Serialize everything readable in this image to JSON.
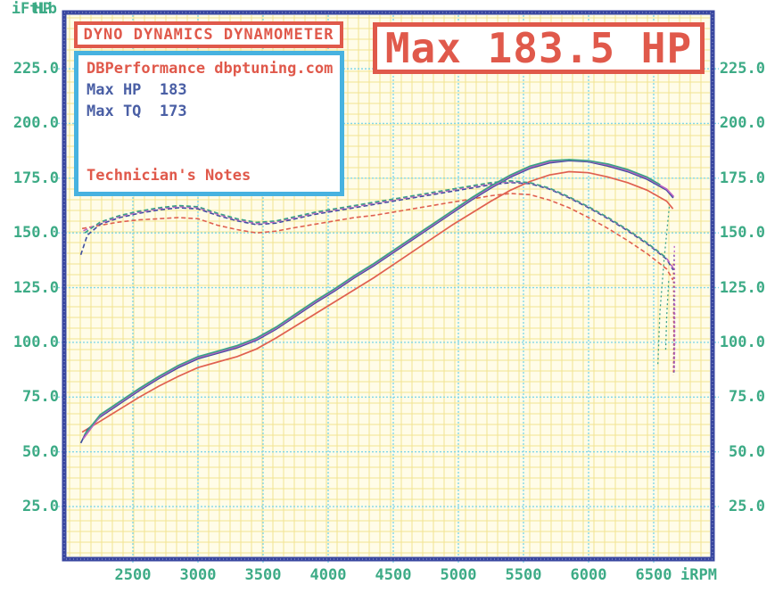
{
  "header": {
    "title": "DYNO DYNAMICS DYNAMOMETER"
  },
  "banner": {
    "text": "Max 183.5 HP"
  },
  "info": {
    "shop": "DBPerformance dbptuning.com",
    "max_hp_line": "Max HP  183",
    "max_tq_line": "Max TQ  173",
    "notes_label": "Technician's Notes"
  },
  "colors": {
    "red_accent": "#e0594b",
    "green_label": "#3dab86",
    "navy_text": "#4a5fa5",
    "cyan_box_border": "#47b2e0",
    "plot_border": "#3947a0",
    "plot_bg": "#fffce8",
    "grid_minor": "#f2e391",
    "grid_major": "#82d7e8"
  },
  "chart_data": {
    "type": "line",
    "title": "Max 183.5 HP",
    "subtitle": "DYNO DYNAMICS DYNAMOMETER",
    "grid": {
      "minor": "on",
      "major": "on"
    },
    "x": {
      "label": "iRPM",
      "min": 1975,
      "max": 6950,
      "ticks": [
        2500,
        3000,
        3500,
        4000,
        4500,
        5000,
        5500,
        6000,
        6500
      ]
    },
    "y_left": {
      "label": "HP",
      "min": 0,
      "max": 250,
      "ticks": [
        225,
        200,
        175,
        150,
        125,
        100,
        75,
        50,
        25
      ]
    },
    "y_right": {
      "label": "iFtLb",
      "min": 0,
      "max": 250,
      "ticks": [
        225,
        200,
        175,
        150,
        125,
        100,
        75,
        50,
        25
      ]
    },
    "stats": {
      "max_hp": 183.5,
      "max_tq": 173
    },
    "runs": [
      {
        "name": "run-red",
        "color": "#e0604f",
        "hp": [
          [
            2110,
            59
          ],
          [
            2250,
            64
          ],
          [
            2400,
            69.5
          ],
          [
            2550,
            75
          ],
          [
            2700,
            80
          ],
          [
            2850,
            84.5
          ],
          [
            3000,
            88.5
          ],
          [
            3150,
            91
          ],
          [
            3300,
            93.5
          ],
          [
            3450,
            97
          ],
          [
            3600,
            102
          ],
          [
            3750,
            107.5
          ],
          [
            3900,
            113
          ],
          [
            4050,
            118.5
          ],
          [
            4200,
            124
          ],
          [
            4350,
            129.5
          ],
          [
            4500,
            135.5
          ],
          [
            4650,
            141.5
          ],
          [
            4800,
            147.5
          ],
          [
            4950,
            153.5
          ],
          [
            5100,
            159
          ],
          [
            5250,
            164.5
          ],
          [
            5400,
            169.5
          ],
          [
            5550,
            173.5
          ],
          [
            5700,
            176.5
          ],
          [
            5850,
            178
          ],
          [
            6000,
            177.5
          ],
          [
            6150,
            175.5
          ],
          [
            6300,
            173
          ],
          [
            6450,
            169.5
          ],
          [
            6600,
            164.5
          ],
          [
            6648,
            161
          ]
        ],
        "hp_tail": [
          [
            6651,
            136
          ],
          [
            6655,
            108
          ],
          [
            6651,
            85
          ]
        ],
        "tq": [
          [
            2110,
            152
          ],
          [
            2250,
            153.5
          ],
          [
            2400,
            155
          ],
          [
            2550,
            156
          ],
          [
            2700,
            156.5
          ],
          [
            2850,
            157
          ],
          [
            3000,
            156.5
          ],
          [
            3150,
            153.5
          ],
          [
            3300,
            151.5
          ],
          [
            3450,
            150
          ],
          [
            3600,
            150.8
          ],
          [
            3750,
            152.5
          ],
          [
            3900,
            154
          ],
          [
            4050,
            155.5
          ],
          [
            4200,
            157
          ],
          [
            4350,
            158
          ],
          [
            4500,
            159.5
          ],
          [
            4650,
            161
          ],
          [
            4800,
            162.5
          ],
          [
            4950,
            164
          ],
          [
            5100,
            165.5
          ],
          [
            5250,
            167
          ],
          [
            5400,
            168
          ],
          [
            5550,
            167.5
          ],
          [
            5700,
            165
          ],
          [
            5850,
            161.5
          ],
          [
            6000,
            157
          ],
          [
            6150,
            152
          ],
          [
            6300,
            146.5
          ],
          [
            6450,
            140.5
          ],
          [
            6600,
            133.5
          ],
          [
            6648,
            128.5
          ]
        ],
        "tq_tail": [
          [
            6652,
            114
          ],
          [
            6656,
            98
          ],
          [
            6652,
            86
          ]
        ]
      },
      {
        "name": "run-blue",
        "color": "#3d4f9e",
        "hp": [
          [
            2100,
            54
          ],
          [
            2150,
            60
          ],
          [
            2250,
            66
          ],
          [
            2400,
            72
          ],
          [
            2550,
            78
          ],
          [
            2700,
            83.5
          ],
          [
            2850,
            88.5
          ],
          [
            3000,
            92.5
          ],
          [
            3150,
            95
          ],
          [
            3300,
            97.5
          ],
          [
            3450,
            101
          ],
          [
            3600,
            106
          ],
          [
            3750,
            112
          ],
          [
            3900,
            118
          ],
          [
            4050,
            123.5
          ],
          [
            4200,
            129.5
          ],
          [
            4350,
            135
          ],
          [
            4500,
            141
          ],
          [
            4650,
            147
          ],
          [
            4800,
            153
          ],
          [
            4950,
            159
          ],
          [
            5100,
            165
          ],
          [
            5250,
            170.5
          ],
          [
            5400,
            175.5
          ],
          [
            5550,
            179.5
          ],
          [
            5700,
            182
          ],
          [
            5850,
            183
          ],
          [
            6000,
            182.5
          ],
          [
            6150,
            180.5
          ],
          [
            6300,
            178
          ],
          [
            6450,
            174.5
          ],
          [
            6600,
            169.5
          ],
          [
            6650,
            166
          ]
        ],
        "hp_tail": [
          [
            6656,
            140
          ],
          [
            6660,
            112
          ],
          [
            6656,
            86
          ]
        ],
        "tq": [
          [
            2100,
            140
          ],
          [
            2150,
            149
          ],
          [
            2250,
            154
          ],
          [
            2400,
            157
          ],
          [
            2550,
            159
          ],
          [
            2700,
            160.5
          ],
          [
            2850,
            161.5
          ],
          [
            3000,
            161
          ],
          [
            3150,
            158
          ],
          [
            3300,
            155.5
          ],
          [
            3450,
            153.8
          ],
          [
            3600,
            154.5
          ],
          [
            3750,
            156.5
          ],
          [
            3900,
            158.5
          ],
          [
            4050,
            160
          ],
          [
            4200,
            161.5
          ],
          [
            4350,
            163
          ],
          [
            4500,
            164.5
          ],
          [
            4650,
            166
          ],
          [
            4800,
            167.5
          ],
          [
            4950,
            169
          ],
          [
            5100,
            170.5
          ],
          [
            5250,
            172
          ],
          [
            5400,
            173
          ],
          [
            5550,
            172.5
          ],
          [
            5700,
            170
          ],
          [
            5850,
            166
          ],
          [
            6000,
            161.5
          ],
          [
            6150,
            156.5
          ],
          [
            6300,
            151
          ],
          [
            6450,
            145
          ],
          [
            6600,
            138
          ],
          [
            6650,
            133
          ]
        ],
        "tq_tail": [
          [
            6655,
            120
          ],
          [
            6660,
            104
          ],
          [
            6656,
            88
          ]
        ]
      },
      {
        "name": "run-magenta",
        "color": "#bb62c4",
        "hp": [
          [
            2120,
            56
          ],
          [
            2250,
            66.5
          ],
          [
            2400,
            72.5
          ],
          [
            2550,
            78.5
          ],
          [
            2700,
            84
          ],
          [
            2850,
            89
          ],
          [
            3000,
            93
          ],
          [
            3150,
            95.5
          ],
          [
            3300,
            98
          ],
          [
            3450,
            101.5
          ],
          [
            3600,
            106.5
          ],
          [
            3750,
            112.5
          ],
          [
            3900,
            118.5
          ],
          [
            4050,
            124
          ],
          [
            4200,
            130
          ],
          [
            4350,
            135.5
          ],
          [
            4500,
            141.5
          ],
          [
            4650,
            147.5
          ],
          [
            4800,
            153.5
          ],
          [
            4950,
            159.5
          ],
          [
            5100,
            165.5
          ],
          [
            5250,
            171
          ],
          [
            5400,
            176
          ],
          [
            5550,
            180
          ],
          [
            5700,
            182.5
          ],
          [
            5850,
            183.4
          ],
          [
            6000,
            182.8
          ],
          [
            6150,
            181
          ],
          [
            6300,
            178.5
          ],
          [
            6450,
            175
          ],
          [
            6600,
            170
          ],
          [
            6655,
            166.5
          ]
        ],
        "hp_tail": [
          [
            6659,
            144
          ],
          [
            6662,
            114
          ],
          [
            6658,
            87
          ]
        ],
        "tq": [
          [
            2120,
            151
          ],
          [
            2250,
            154.5
          ],
          [
            2400,
            157.5
          ],
          [
            2550,
            159.5
          ],
          [
            2700,
            161
          ],
          [
            2850,
            162
          ],
          [
            3000,
            161.5
          ],
          [
            3150,
            158.5
          ],
          [
            3300,
            156
          ],
          [
            3450,
            154.3
          ],
          [
            3600,
            155
          ],
          [
            3750,
            157
          ],
          [
            3900,
            159
          ],
          [
            4050,
            160.5
          ],
          [
            4200,
            162
          ],
          [
            4350,
            163.5
          ],
          [
            4500,
            165
          ],
          [
            4650,
            166.5
          ],
          [
            4800,
            168
          ],
          [
            4950,
            169.5
          ],
          [
            5100,
            171
          ],
          [
            5250,
            172.5
          ],
          [
            5400,
            173.4
          ],
          [
            5550,
            172.8
          ],
          [
            5700,
            170.3
          ],
          [
            5850,
            166.3
          ],
          [
            6000,
            161.8
          ],
          [
            6150,
            156.8
          ],
          [
            6300,
            151.3
          ],
          [
            6450,
            145.3
          ],
          [
            6600,
            138.3
          ],
          [
            6655,
            133.5
          ]
        ],
        "tq_tail": [
          [
            6658,
            118
          ],
          [
            6662,
            100
          ],
          [
            6658,
            86
          ]
        ]
      },
      {
        "name": "run-green",
        "color": "#3aa287",
        "hp": [
          [
            2130,
            58
          ],
          [
            2250,
            67
          ],
          [
            2400,
            73
          ],
          [
            2550,
            79
          ],
          [
            2700,
            84.5
          ],
          [
            2850,
            89.5
          ],
          [
            3000,
            93.5
          ],
          [
            3150,
            96
          ],
          [
            3300,
            98.5
          ],
          [
            3450,
            102
          ],
          [
            3600,
            107
          ],
          [
            3750,
            113
          ],
          [
            3900,
            119
          ],
          [
            4050,
            124.5
          ],
          [
            4200,
            130.5
          ],
          [
            4350,
            136
          ],
          [
            4500,
            142
          ],
          [
            4650,
            148
          ],
          [
            4800,
            154
          ],
          [
            4950,
            160
          ],
          [
            5100,
            166
          ],
          [
            5250,
            171.5
          ],
          [
            5400,
            176.5
          ],
          [
            5550,
            180.5
          ],
          [
            5700,
            183
          ],
          [
            5850,
            183.5
          ],
          [
            6000,
            183
          ],
          [
            6150,
            181.5
          ],
          [
            6300,
            179
          ],
          [
            6450,
            175.5
          ],
          [
            6550,
            172
          ]
        ],
        "hp_tail": [
          [
            6620,
            162
          ],
          [
            6580,
            138
          ],
          [
            6548,
            114
          ],
          [
            6532,
            90
          ]
        ],
        "tq": [
          [
            2130,
            150
          ],
          [
            2250,
            155
          ],
          [
            2400,
            158
          ],
          [
            2550,
            160
          ],
          [
            2700,
            161.5
          ],
          [
            2850,
            162.5
          ],
          [
            3000,
            162
          ],
          [
            3150,
            159
          ],
          [
            3300,
            156.5
          ],
          [
            3450,
            154.8
          ],
          [
            3600,
            155.5
          ],
          [
            3750,
            157.5
          ],
          [
            3900,
            159.5
          ],
          [
            4050,
            161
          ],
          [
            4200,
            162.5
          ],
          [
            4350,
            164
          ],
          [
            4500,
            165.5
          ],
          [
            4650,
            167
          ],
          [
            4800,
            168.5
          ],
          [
            4950,
            170
          ],
          [
            5100,
            171.5
          ],
          [
            5250,
            173
          ],
          [
            5400,
            173.8
          ],
          [
            5550,
            173
          ],
          [
            5700,
            170.5
          ],
          [
            5850,
            166.5
          ],
          [
            6000,
            162
          ],
          [
            6150,
            157
          ],
          [
            6300,
            151.5
          ],
          [
            6450,
            145.5
          ],
          [
            6600,
            138.5
          ]
        ],
        "tq_tail": [
          [
            6615,
            128
          ],
          [
            6600,
            112
          ],
          [
            6592,
            96
          ]
        ]
      }
    ]
  }
}
